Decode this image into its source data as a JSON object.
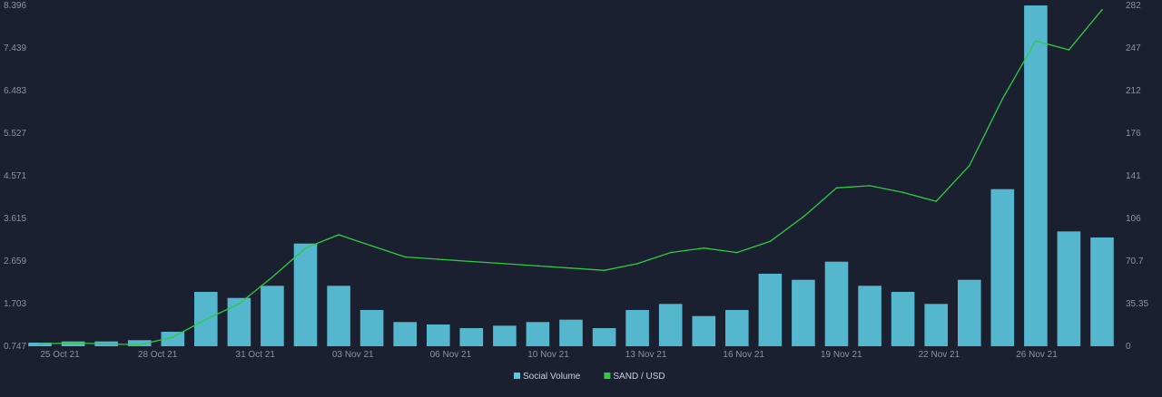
{
  "chart_data": {
    "type": "bar+line",
    "title": "",
    "xlabel": "",
    "ylabel": "",
    "x_ticks": [
      "25 Oct 21",
      "28 Oct 21",
      "31 Oct 21",
      "03 Nov 21",
      "06 Nov 21",
      "10 Nov 21",
      "13 Nov 21",
      "16 Nov 21",
      "19 Nov 21",
      "22 Nov 21",
      "26 Nov 21"
    ],
    "left_axis": {
      "ticks": [
        "8.396",
        "7.439",
        "6.483",
        "5.527",
        "4.571",
        "3.615",
        "2.659",
        "1.703",
        "0.747"
      ],
      "ylim": [
        0.747,
        8.396
      ]
    },
    "right_axis": {
      "ticks": [
        "282",
        "247",
        "212",
        "176",
        "141",
        "106",
        "70.7",
        "35.35",
        "0"
      ],
      "ylim": [
        0,
        282
      ]
    },
    "grid": false,
    "legend": "bottom-center",
    "series": [
      {
        "name": "Social Volume",
        "kind": "bar",
        "axis": "right",
        "color": "#5bc8df",
        "points": [
          [
            "25 Oct 21",
            3
          ],
          [
            "26 Oct 21",
            4
          ],
          [
            "27 Oct 21",
            4
          ],
          [
            "28 Oct 21",
            5
          ],
          [
            "29 Oct 21",
            12
          ],
          [
            "30 Oct 21",
            45
          ],
          [
            "31 Oct 21",
            40
          ],
          [
            "01 Nov 21",
            50
          ],
          [
            "02 Nov 21",
            85
          ],
          [
            "03 Nov 21",
            50
          ],
          [
            "04 Nov 21",
            30
          ],
          [
            "05 Nov 21",
            20
          ],
          [
            "06 Nov 21",
            18
          ],
          [
            "07 Nov 21",
            15
          ],
          [
            "08 Nov 21",
            17
          ],
          [
            "09 Nov 21",
            20
          ],
          [
            "10 Nov 21",
            22
          ],
          [
            "11 Nov 21",
            15
          ],
          [
            "12 Nov 21",
            30
          ],
          [
            "13 Nov 21",
            35
          ],
          [
            "14 Nov 21",
            25
          ],
          [
            "15 Nov 21",
            30
          ],
          [
            "16 Nov 21",
            60
          ],
          [
            "17 Nov 21",
            55
          ],
          [
            "18 Nov 21",
            70
          ],
          [
            "19 Nov 21",
            50
          ],
          [
            "20 Nov 21",
            45
          ],
          [
            "21 Nov 21",
            35
          ],
          [
            "22 Nov 21",
            55
          ],
          [
            "23 Nov 21",
            130
          ],
          [
            "24 Nov 21",
            282
          ],
          [
            "25 Nov 21",
            95
          ],
          [
            "26 Nov 21",
            90
          ]
        ]
      },
      {
        "name": "SAND / USD",
        "kind": "line",
        "axis": "left",
        "color": "#2ecc40",
        "points": [
          [
            "25 Oct 21",
            0.8
          ],
          [
            "26 Oct 21",
            0.82
          ],
          [
            "27 Oct 21",
            0.8
          ],
          [
            "28 Oct 21",
            0.78
          ],
          [
            "29 Oct 21",
            0.95
          ],
          [
            "30 Oct 21",
            1.35
          ],
          [
            "31 Oct 21",
            1.7
          ],
          [
            "01 Nov 21",
            2.3
          ],
          [
            "02 Nov 21",
            2.95
          ],
          [
            "03 Nov 21",
            3.25
          ],
          [
            "04 Nov 21",
            3.0
          ],
          [
            "05 Nov 21",
            2.75
          ],
          [
            "06 Nov 21",
            2.7
          ],
          [
            "07 Nov 21",
            2.65
          ],
          [
            "08 Nov 21",
            2.6
          ],
          [
            "09 Nov 21",
            2.55
          ],
          [
            "10 Nov 21",
            2.5
          ],
          [
            "11 Nov 21",
            2.45
          ],
          [
            "12 Nov 21",
            2.6
          ],
          [
            "13 Nov 21",
            2.85
          ],
          [
            "14 Nov 21",
            2.95
          ],
          [
            "15 Nov 21",
            2.85
          ],
          [
            "16 Nov 21",
            3.1
          ],
          [
            "17 Nov 21",
            3.65
          ],
          [
            "18 Nov 21",
            4.3
          ],
          [
            "19 Nov 21",
            4.35
          ],
          [
            "20 Nov 21",
            4.2
          ],
          [
            "21 Nov 21",
            4.0
          ],
          [
            "22 Nov 21",
            4.8
          ],
          [
            "23 Nov 21",
            6.3
          ],
          [
            "24 Nov 21",
            7.6
          ],
          [
            "25 Nov 21",
            7.4
          ],
          [
            "26 Nov 21",
            8.3
          ]
        ]
      }
    ]
  }
}
